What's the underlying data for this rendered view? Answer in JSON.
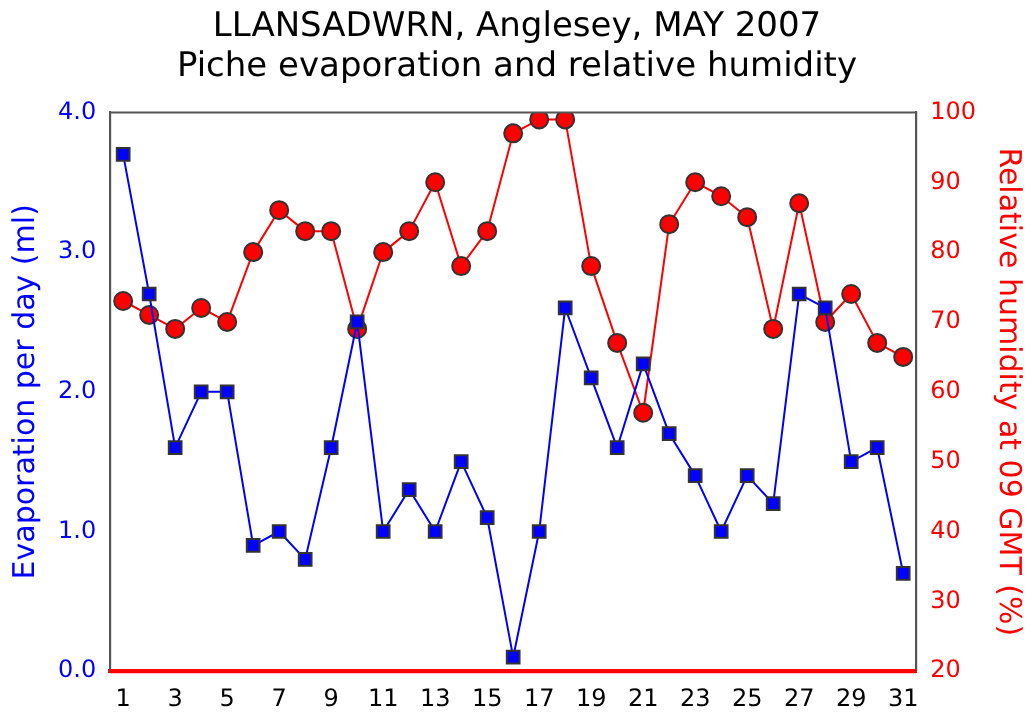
{
  "chart_data": {
    "type": "line",
    "title": "LLANSADWRN, Anglesey, MAY 2007",
    "subtitle": "Piche evaporation and relative humidity",
    "ylabel": "Evaporation per day (ml)",
    "y2label": "Relative humidity at 09 GMT (%)",
    "x": [
      1,
      2,
      3,
      4,
      5,
      6,
      7,
      8,
      9,
      10,
      11,
      12,
      13,
      14,
      15,
      16,
      17,
      18,
      19,
      20,
      21,
      22,
      23,
      24,
      25,
      26,
      27,
      28,
      29,
      30,
      31
    ],
    "xlim": [
      0.5,
      31.5
    ],
    "xticks": [
      1,
      3,
      5,
      7,
      9,
      11,
      13,
      15,
      17,
      19,
      21,
      23,
      25,
      27,
      29,
      31
    ],
    "ylim": [
      0,
      4
    ],
    "yticks": [
      {
        "value": 0,
        "label": "0.0"
      },
      {
        "value": 1,
        "label": "1.0"
      },
      {
        "value": 2,
        "label": "2.0"
      },
      {
        "value": 3,
        "label": "3.0"
      },
      {
        "value": 4,
        "label": "4.0"
      }
    ],
    "y2lim": [
      20,
      100
    ],
    "y2ticks": [
      20,
      30,
      40,
      50,
      60,
      70,
      80,
      90,
      100
    ],
    "grid": false,
    "legend": false,
    "series": [
      {
        "color": "#0000ff",
        "marker": "square",
        "values": [
          3.7,
          2.7,
          1.6,
          2.0,
          2.0,
          0.9,
          1.0,
          0.8,
          1.6,
          2.5,
          1.0,
          1.3,
          1.0,
          1.5,
          1.1,
          0.1,
          1.0,
          2.6,
          2.1,
          1.6,
          2.2,
          1.7,
          1.4,
          1.0,
          1.4,
          1.2,
          2.7,
          2.6,
          1.5,
          1.6,
          0.7
        ]
      },
      {
        "color": "#ff0000",
        "axis": "y2",
        "marker": "circle",
        "values": [
          73,
          71,
          69,
          72,
          70,
          80,
          86,
          83,
          83,
          69,
          80,
          83,
          90,
          78,
          83,
          97,
          99,
          99,
          78,
          67,
          57,
          84,
          90,
          88,
          85,
          69,
          87,
          70,
          74,
          67,
          65
        ]
      }
    ]
  }
}
